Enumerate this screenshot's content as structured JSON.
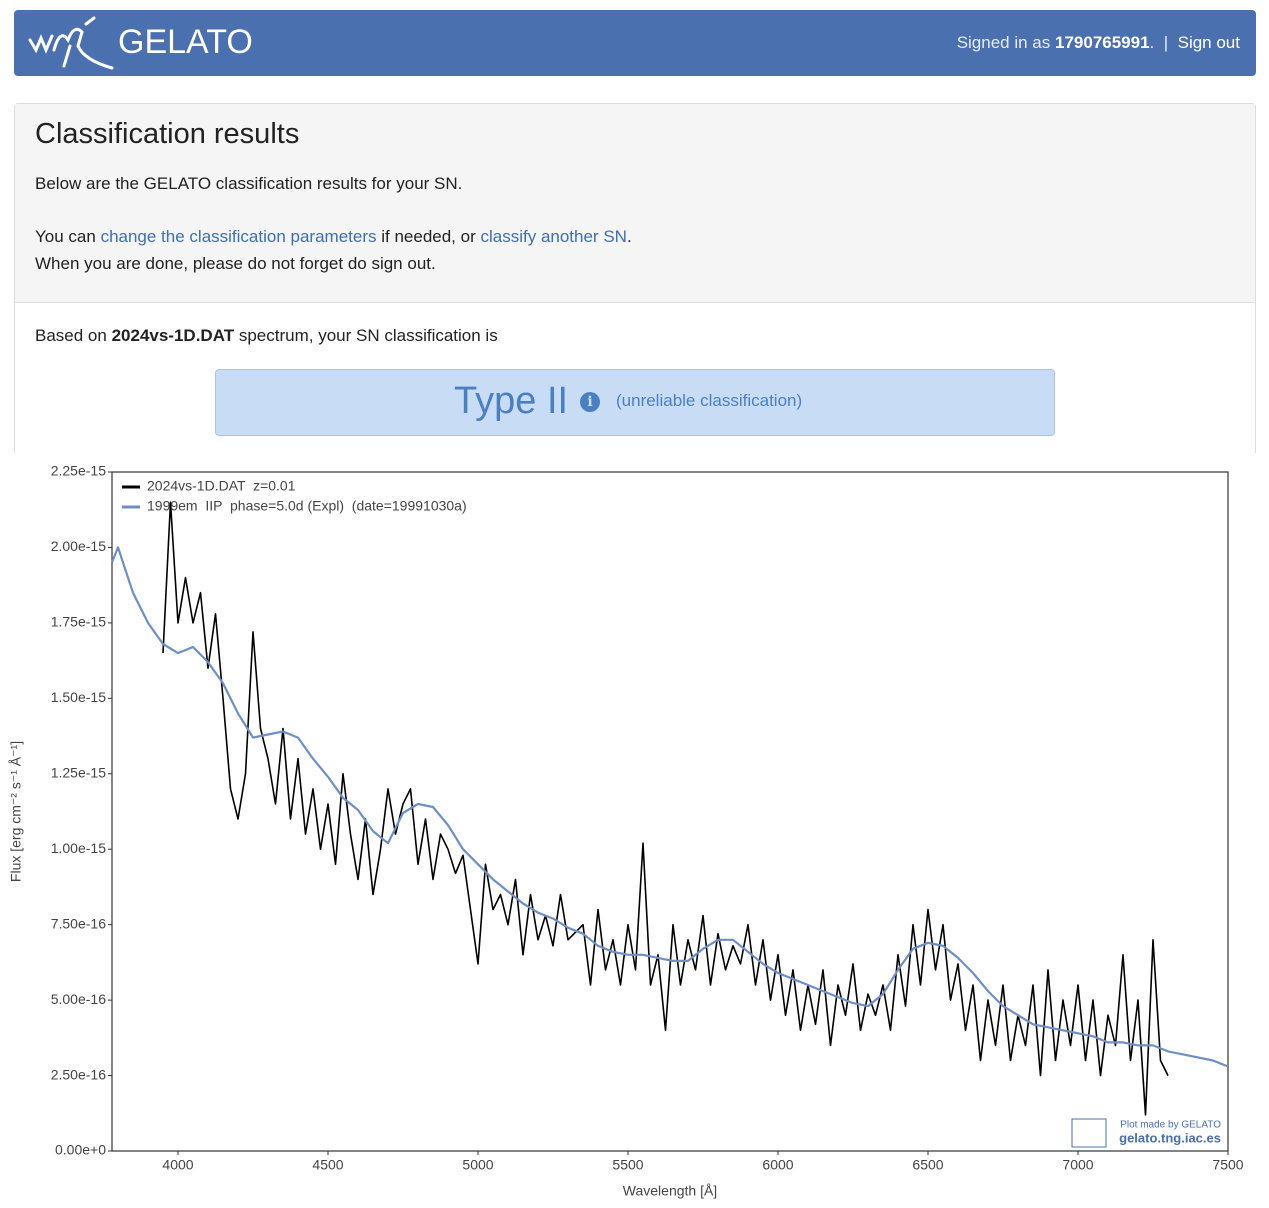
{
  "header": {
    "brand": "GELATO",
    "signed_in_prefix": "Signed in as",
    "user": "1790765991",
    "user_suffix": ".",
    "separator": "|",
    "sign_out": "Sign out"
  },
  "panel": {
    "title": "Classification results",
    "intro": "Below are the GELATO classification results for your SN.",
    "line2_prefix": "You can",
    "link_params": "change the classification parameters",
    "line2_mid": "if needed, or",
    "link_another": "classify another SN",
    "line2_suffix": ".",
    "line3": "When you are done, please do not forget do sign out.",
    "based_prefix": "Based on",
    "based_file": "2024vs-1D.DAT",
    "based_suffix": "spectrum, your SN classification is",
    "result_type": "Type II",
    "result_note": "(unreliable classification)"
  },
  "chart_data": {
    "type": "line",
    "xlabel": "Wavelength [Å]",
    "ylabel": "Flux [erg cm⁻² s⁻¹ Å⁻¹]",
    "watermark": [
      "Plot made by GELATO",
      "gelato.tng.iac.es"
    ],
    "xlim": [
      3780,
      7500
    ],
    "xticks": [
      4000,
      4500,
      5000,
      5500,
      6000,
      6500,
      7000,
      7500
    ],
    "ylim": [
      0,
      2.25e-15
    ],
    "yticks": [
      {
        "value": 0,
        "label": "0.00e+0"
      },
      {
        "value": 2.5e-16,
        "label": "2.50e-16"
      },
      {
        "value": 5e-16,
        "label": "5.00e-16"
      },
      {
        "value": 7.5e-16,
        "label": "7.50e-16"
      },
      {
        "value": 1e-15,
        "label": "1.00e-15"
      },
      1.25e-15,
      {
        "value": 1.5e-15,
        "label": "1.50e-15"
      },
      1.75e-15,
      {
        "value": 2e-15,
        "label": "2.00e-15"
      },
      2.25e-15
    ],
    "legend": "upper left",
    "series": [
      {
        "name": "2024vs-1D.DAT  z=0.01",
        "color": "#000000",
        "x": [
          3950,
          3975,
          4000,
          4025,
          4050,
          4075,
          4100,
          4125,
          4150,
          4175,
          4200,
          4225,
          4250,
          4275,
          4300,
          4325,
          4350,
          4375,
          4400,
          4425,
          4450,
          4475,
          4500,
          4525,
          4550,
          4575,
          4600,
          4625,
          4650,
          4675,
          4700,
          4725,
          4750,
          4775,
          4800,
          4825,
          4850,
          4875,
          4900,
          4925,
          4950,
          4975,
          5000,
          5025,
          5050,
          5075,
          5100,
          5125,
          5150,
          5175,
          5200,
          5225,
          5250,
          5275,
          5300,
          5350,
          5375,
          5400,
          5425,
          5450,
          5475,
          5500,
          5525,
          5550,
          5575,
          5600,
          5625,
          5650,
          5675,
          5700,
          5725,
          5750,
          5775,
          5800,
          5825,
          5850,
          5875,
          5900,
          5925,
          5950,
          5975,
          6000,
          6025,
          6050,
          6075,
          6100,
          6125,
          6150,
          6175,
          6200,
          6225,
          6250,
          6275,
          6300,
          6325,
          6350,
          6375,
          6400,
          6425,
          6450,
          6475,
          6500,
          6525,
          6550,
          6575,
          6600,
          6625,
          6650,
          6675,
          6700,
          6725,
          6750,
          6775,
          6800,
          6825,
          6850,
          6875,
          6900,
          6925,
          6950,
          6975,
          7000,
          7025,
          7050,
          7075,
          7100,
          7125,
          7150,
          7175,
          7200,
          7225,
          7250,
          7275,
          7300
        ],
        "values": [
          1.65e-15,
          2.15e-15,
          1.75e-15,
          1.9e-15,
          1.75e-15,
          1.85e-15,
          1.6e-15,
          1.78e-15,
          1.5e-15,
          1.2e-15,
          1.1e-15,
          1.25e-15,
          1.72e-15,
          1.4e-15,
          1.3e-15,
          1.15e-15,
          1.4e-15,
          1.1e-15,
          1.3e-15,
          1.05e-15,
          1.2e-15,
          1e-15,
          1.15e-15,
          9.5e-16,
          1.25e-15,
          1.05e-15,
          9e-16,
          1.1e-15,
          8.5e-16,
          1e-15,
          1.2e-15,
          1.05e-15,
          1.15e-15,
          1.2e-15,
          9.5e-16,
          1.1e-15,
          9e-16,
          1.05e-15,
          1e-15,
          9.2e-16,
          9.8e-16,
          8e-16,
          6.2e-16,
          9.5e-16,
          8e-16,
          8.5e-16,
          7.5e-16,
          9e-16,
          6.5e-16,
          8.5e-16,
          7e-16,
          7.8e-16,
          6.8e-16,
          8.5e-16,
          7e-16,
          7.5e-16,
          5.5e-16,
          8e-16,
          6e-16,
          7e-16,
          5.5e-16,
          7.5e-16,
          6e-16,
          1.02e-15,
          5.5e-16,
          6.5e-16,
          4e-16,
          7.5e-16,
          5.5e-16,
          7e-16,
          6e-16,
          7.8e-16,
          5.5e-16,
          7.2e-16,
          6e-16,
          6.8e-16,
          6.2e-16,
          7.5e-16,
          5.5e-16,
          7e-16,
          5e-16,
          6.5e-16,
          4.5e-16,
          6e-16,
          4e-16,
          5.5e-16,
          4.2e-16,
          6e-16,
          3.5e-16,
          5.5e-16,
          4.5e-16,
          6.2e-16,
          4e-16,
          5.2e-16,
          4.5e-16,
          5.5e-16,
          4e-16,
          6.5e-16,
          4.8e-16,
          7.5e-16,
          5.5e-16,
          8e-16,
          6e-16,
          7.5e-16,
          5e-16,
          6.2e-16,
          4e-16,
          5.5e-16,
          3e-16,
          5e-16,
          3.5e-16,
          5.5e-16,
          3e-16,
          4.5e-16,
          3.5e-16,
          5.5e-16,
          2.5e-16,
          6e-16,
          3e-16,
          5e-16,
          3.5e-16,
          5.5e-16,
          3e-16,
          5e-16,
          2.5e-16,
          4.5e-16,
          3.5e-16,
          6.5e-16,
          3e-16,
          5e-16,
          1.2e-16,
          7e-16,
          3e-16,
          2.5e-16
        ]
      },
      {
        "name": "1999em  IIP  phase=5.0d (Expl)  (date=19991030a)",
        "color": "#6f8fc4",
        "x": [
          3780,
          3800,
          3850,
          3900,
          3950,
          4000,
          4050,
          4100,
          4150,
          4200,
          4250,
          4300,
          4350,
          4400,
          4450,
          4500,
          4550,
          4600,
          4650,
          4700,
          4750,
          4800,
          4850,
          4900,
          4950,
          5000,
          5050,
          5100,
          5150,
          5200,
          5250,
          5300,
          5350,
          5400,
          5450,
          5500,
          5550,
          5600,
          5650,
          5700,
          5750,
          5800,
          5850,
          5900,
          5950,
          6000,
          6050,
          6100,
          6150,
          6200,
          6250,
          6300,
          6350,
          6400,
          6450,
          6500,
          6550,
          6600,
          6650,
          6700,
          6750,
          6800,
          6850,
          6900,
          6950,
          7000,
          7050,
          7100,
          7150,
          7200,
          7250,
          7300,
          7350,
          7400,
          7450,
          7500
        ],
        "values": [
          1.95e-15,
          2e-15,
          1.85e-15,
          1.75e-15,
          1.68e-15,
          1.65e-15,
          1.67e-15,
          1.62e-15,
          1.55e-15,
          1.45e-15,
          1.37e-15,
          1.38e-15,
          1.39e-15,
          1.37e-15,
          1.3e-15,
          1.24e-15,
          1.17e-15,
          1.13e-15,
          1.06e-15,
          1.02e-15,
          1.12e-15,
          1.15e-15,
          1.14e-15,
          1.08e-15,
          1e-15,
          9.5e-16,
          9e-16,
          8.6e-16,
          8.2e-16,
          7.9e-16,
          7.7e-16,
          7.4e-16,
          7.2e-16,
          6.8e-16,
          6.6e-16,
          6.5e-16,
          6.5e-16,
          6.4e-16,
          6.3e-16,
          6.3e-16,
          6.7e-16,
          7e-16,
          7e-16,
          6.6e-16,
          6.2e-16,
          5.9e-16,
          5.7e-16,
          5.5e-16,
          5.3e-16,
          5.1e-16,
          4.9e-16,
          4.8e-16,
          5.2e-16,
          6e-16,
          6.7e-16,
          6.9e-16,
          6.8e-16,
          6.4e-16,
          5.9e-16,
          5.3e-16,
          4.8e-16,
          4.5e-16,
          4.2e-16,
          4.1e-16,
          4e-16,
          3.9e-16,
          3.8e-16,
          3.6e-16,
          3.6e-16,
          3.5e-16,
          3.5e-16,
          3.3e-16,
          3.2e-16,
          3.1e-16,
          3e-16,
          2.8e-16
        ]
      }
    ]
  }
}
